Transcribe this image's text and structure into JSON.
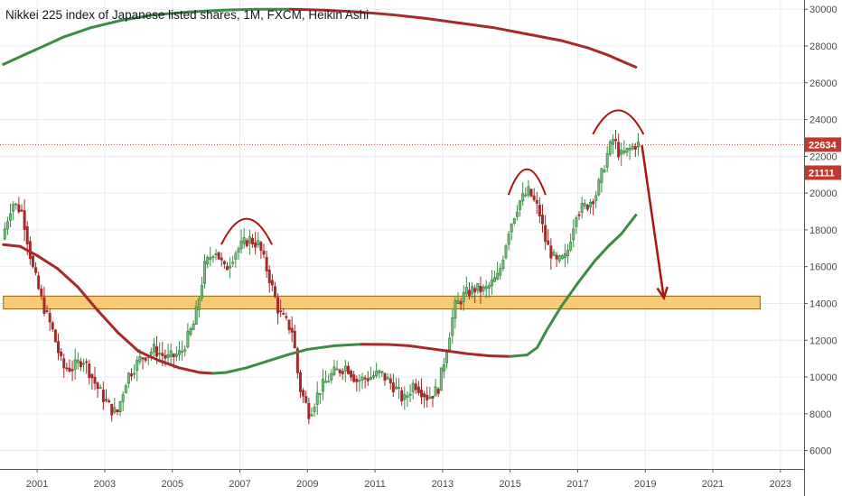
{
  "header": {
    "title": "Nikkei 225 index of Japanese listed shares, 1M, FXCM, Heikin Ashi"
  },
  "colors": {
    "up": "#3d8b45",
    "down": "#a52a2a",
    "annotation": "#a9150f",
    "ma_green": "#3d8b45",
    "ma_red": "#a52a2a",
    "zone_fill": "#f9c465",
    "zone_stroke": "#8a6416",
    "tag_red": "#c0392b",
    "price_line": "#c0392b"
  },
  "chart_data": {
    "type": "candlestick",
    "style": "Heikin Ashi",
    "interval": "1M",
    "source": "FXCM",
    "y_ticks": [
      6000,
      8000,
      10000,
      12000,
      14000,
      16000,
      18000,
      20000,
      22000,
      24000,
      26000,
      28000,
      30000
    ],
    "x_ticks": [
      "2001",
      "2003",
      "2005",
      "2007",
      "2009",
      "2011",
      "2013",
      "2015",
      "2017",
      "2019",
      "2021",
      "2023"
    ],
    "x_range": [
      1999.9,
      2023.7
    ],
    "y_range": [
      5000,
      30500
    ],
    "grid": true,
    "price_markers": [
      {
        "label": "22634",
        "value": 22634,
        "color": "#c0392b",
        "dotted_line": true
      },
      {
        "label": "21111",
        "value": 21111,
        "color": "#c0392b",
        "dotted_line": false
      }
    ],
    "support_zone": {
      "from": 2000.0,
      "to": 2022.4,
      "low": 13700,
      "high": 14400
    },
    "price_path": [
      [
        2000.0,
        17500
      ],
      [
        2000.3,
        19500
      ],
      [
        2000.6,
        19000
      ],
      [
        2000.9,
        16000
      ],
      [
        2001.2,
        14000
      ],
      [
        2001.5,
        12500
      ],
      [
        2001.8,
        10500
      ],
      [
        2002.1,
        10500
      ],
      [
        2002.4,
        11000
      ],
      [
        2002.8,
        9500
      ],
      [
        2003.2,
        8300
      ],
      [
        2003.4,
        8000
      ],
      [
        2003.7,
        10000
      ],
      [
        2004.1,
        11000
      ],
      [
        2004.5,
        11500
      ],
      [
        2004.9,
        11000
      ],
      [
        2005.3,
        11300
      ],
      [
        2005.7,
        13000
      ],
      [
        2006.0,
        16000
      ],
      [
        2006.3,
        17000
      ],
      [
        2006.6,
        15800
      ],
      [
        2006.9,
        16800
      ],
      [
        2007.3,
        17500
      ],
      [
        2007.6,
        17200
      ],
      [
        2007.9,
        15500
      ],
      [
        2008.2,
        13500
      ],
      [
        2008.6,
        12500
      ],
      [
        2008.8,
        9500
      ],
      [
        2009.1,
        8000
      ],
      [
        2009.4,
        9300
      ],
      [
        2009.8,
        10200
      ],
      [
        2010.2,
        10600
      ],
      [
        2010.5,
        9800
      ],
      [
        2010.9,
        10000
      ],
      [
        2011.2,
        10200
      ],
      [
        2011.6,
        9500
      ],
      [
        2011.9,
        8700
      ],
      [
        2012.2,
        9700
      ],
      [
        2012.6,
        8900
      ],
      [
        2012.9,
        9300
      ],
      [
        2013.1,
        11000
      ],
      [
        2013.4,
        13800
      ],
      [
        2013.7,
        14500
      ],
      [
        2014.0,
        14800
      ],
      [
        2014.3,
        14700
      ],
      [
        2014.7,
        15500
      ],
      [
        2015.0,
        18000
      ],
      [
        2015.3,
        19500
      ],
      [
        2015.6,
        20100
      ],
      [
        2015.9,
        19000
      ],
      [
        2016.1,
        17300
      ],
      [
        2016.4,
        16200
      ],
      [
        2016.7,
        16500
      ],
      [
        2017.0,
        19000
      ],
      [
        2017.3,
        19300
      ],
      [
        2017.6,
        20000
      ],
      [
        2017.9,
        22000
      ],
      [
        2018.1,
        23000
      ],
      [
        2018.3,
        22000
      ],
      [
        2018.6,
        22400
      ],
      [
        2018.75,
        22634
      ]
    ],
    "series": [
      {
        "kind": "moving_average",
        "points": [
          [
            2000.0,
            17200
          ],
          [
            2000.5,
            17100
          ],
          [
            2001.0,
            16600
          ],
          [
            2001.6,
            15900
          ],
          [
            2002.2,
            14900
          ],
          [
            2002.8,
            13600
          ],
          [
            2003.4,
            12400
          ],
          [
            2004.0,
            11400
          ],
          [
            2004.6,
            10900
          ],
          [
            2005.2,
            10500
          ],
          [
            2005.8,
            10250
          ],
          [
            2006.2,
            10200
          ],
          [
            2006.6,
            10250
          ],
          [
            2007.2,
            10500
          ],
          [
            2007.8,
            10850
          ],
          [
            2008.4,
            11200
          ],
          [
            2009.0,
            11500
          ],
          [
            2009.8,
            11700
          ],
          [
            2010.6,
            11780
          ],
          [
            2011.4,
            11770
          ],
          [
            2012.0,
            11700
          ],
          [
            2012.6,
            11550
          ],
          [
            2013.2,
            11400
          ],
          [
            2013.8,
            11250
          ],
          [
            2014.4,
            11150
          ],
          [
            2015.0,
            11120
          ],
          [
            2015.5,
            11200
          ],
          [
            2015.8,
            11600
          ],
          [
            2016.1,
            12600
          ],
          [
            2016.5,
            13800
          ],
          [
            2017.0,
            15100
          ],
          [
            2017.5,
            16300
          ],
          [
            2017.9,
            17100
          ],
          [
            2018.3,
            17800
          ],
          [
            2018.72,
            18800
          ]
        ],
        "colored_by_slope": true
      },
      {
        "kind": "moving_average",
        "points": [
          [
            2000.0,
            27000
          ],
          [
            2000.6,
            27500
          ],
          [
            2001.2,
            28000
          ],
          [
            2001.8,
            28500
          ],
          [
            2002.6,
            29000
          ],
          [
            2003.5,
            29400
          ],
          [
            2004.5,
            29700
          ],
          [
            2005.5,
            29850
          ],
          [
            2006.5,
            29950
          ],
          [
            2007.5,
            30000
          ],
          [
            2008.5,
            30000
          ],
          [
            2009.5,
            29950
          ],
          [
            2010.5,
            29850
          ],
          [
            2011.5,
            29700
          ],
          [
            2012.5,
            29500
          ],
          [
            2013.5,
            29250
          ],
          [
            2014.5,
            29000
          ],
          [
            2015.5,
            28650
          ],
          [
            2016.5,
            28300
          ],
          [
            2017.3,
            27900
          ],
          [
            2017.9,
            27500
          ],
          [
            2018.4,
            27100
          ],
          [
            2018.72,
            26850
          ]
        ],
        "colored_by_slope": true
      }
    ],
    "annotations": [
      {
        "type": "arc",
        "center_x": 2007.2,
        "peak": 18600,
        "width": 1.5,
        "depth": 1400
      },
      {
        "type": "arc",
        "center_x": 2015.5,
        "peak": 21300,
        "width": 1.1,
        "depth": 1400
      },
      {
        "type": "arc",
        "center_x": 2018.2,
        "peak": 24500,
        "width": 1.5,
        "depth": 1300
      },
      {
        "type": "arrow",
        "from": [
          2018.9,
          22600
        ],
        "to": [
          2019.55,
          14300
        ]
      }
    ]
  }
}
